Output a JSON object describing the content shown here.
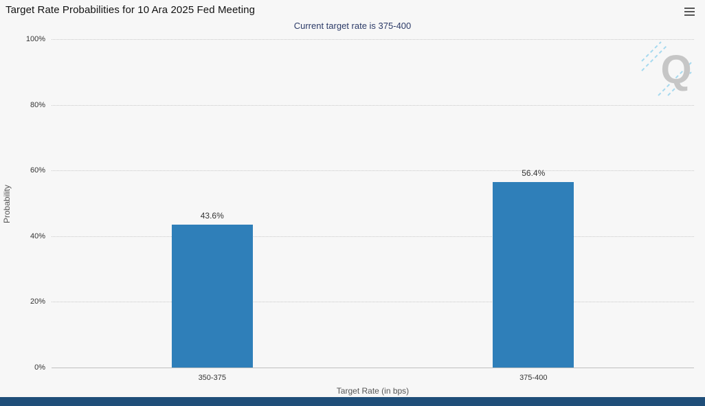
{
  "chart": {
    "title": "Target Rate Probabilities for 10 Ara 2025 Fed Meeting",
    "subtitle": "Current target rate is 375-400",
    "xlabel": "Target Rate (in bps)",
    "ylabel": "Probability"
  },
  "chart_data": {
    "type": "bar",
    "title": "Target Rate Probabilities for 10 Ara 2025 Fed Meeting",
    "subtitle": "Current target rate is 375-400",
    "xlabel": "Target Rate (in bps)",
    "ylabel": "Probability",
    "categories": [
      "350-375",
      "375-400"
    ],
    "values": [
      43.6,
      56.4
    ],
    "value_labels": [
      "43.6%",
      "56.4%"
    ],
    "ylim": [
      0,
      100
    ],
    "yticks": [
      0,
      20,
      40,
      60,
      80,
      100
    ],
    "ytick_labels": [
      "0%",
      "20%",
      "40%",
      "60%",
      "80%",
      "100%"
    ],
    "grid": "horizontal-dotted",
    "legend": "none",
    "bar_color": "#2f7fb9"
  },
  "icons": {
    "menu_icon": "hamburger-menu",
    "watermark_letter": "Q"
  },
  "colors": {
    "bar": "#2f7fb9",
    "subtitle_text": "#2b3a67",
    "background": "#f7f7f7",
    "footer_bar": "#1f4e79",
    "gridline": "#c8c8c8",
    "watermark_gray": "#c6c6c6",
    "watermark_blue": "#a6d9ef"
  }
}
